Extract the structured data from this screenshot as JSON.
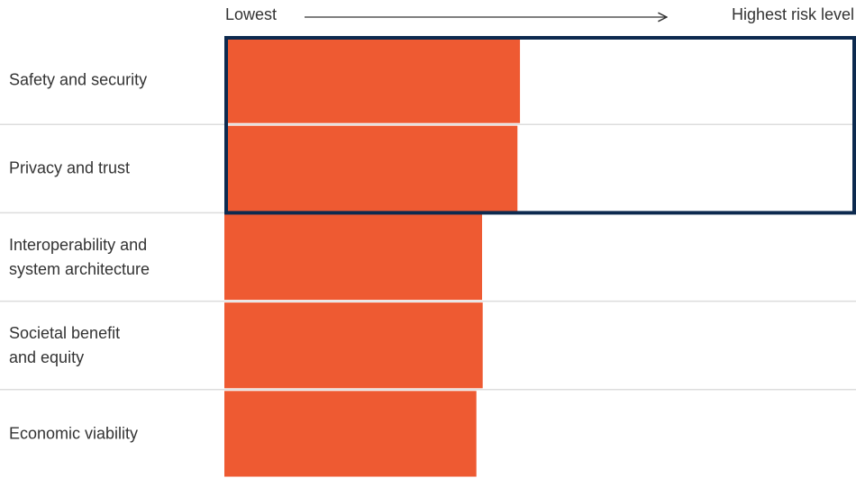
{
  "chart_data": {
    "type": "bar",
    "orientation": "horizontal",
    "axis_labels": {
      "low": "Lowest",
      "high": "Highest risk level"
    },
    "categories": [
      "Safety and security",
      "Privacy and trust",
      "Interoperability and\nsystem architecture",
      "Societal benefit\nand equity",
      "Economic viability"
    ],
    "values": [
      46.8,
      46.4,
      40.8,
      40.9,
      39.9
    ],
    "color": "#ee5a32",
    "xlim": [
      0,
      100
    ],
    "highlight": [
      0,
      1
    ],
    "highlight_color": "#0d2a4f"
  }
}
